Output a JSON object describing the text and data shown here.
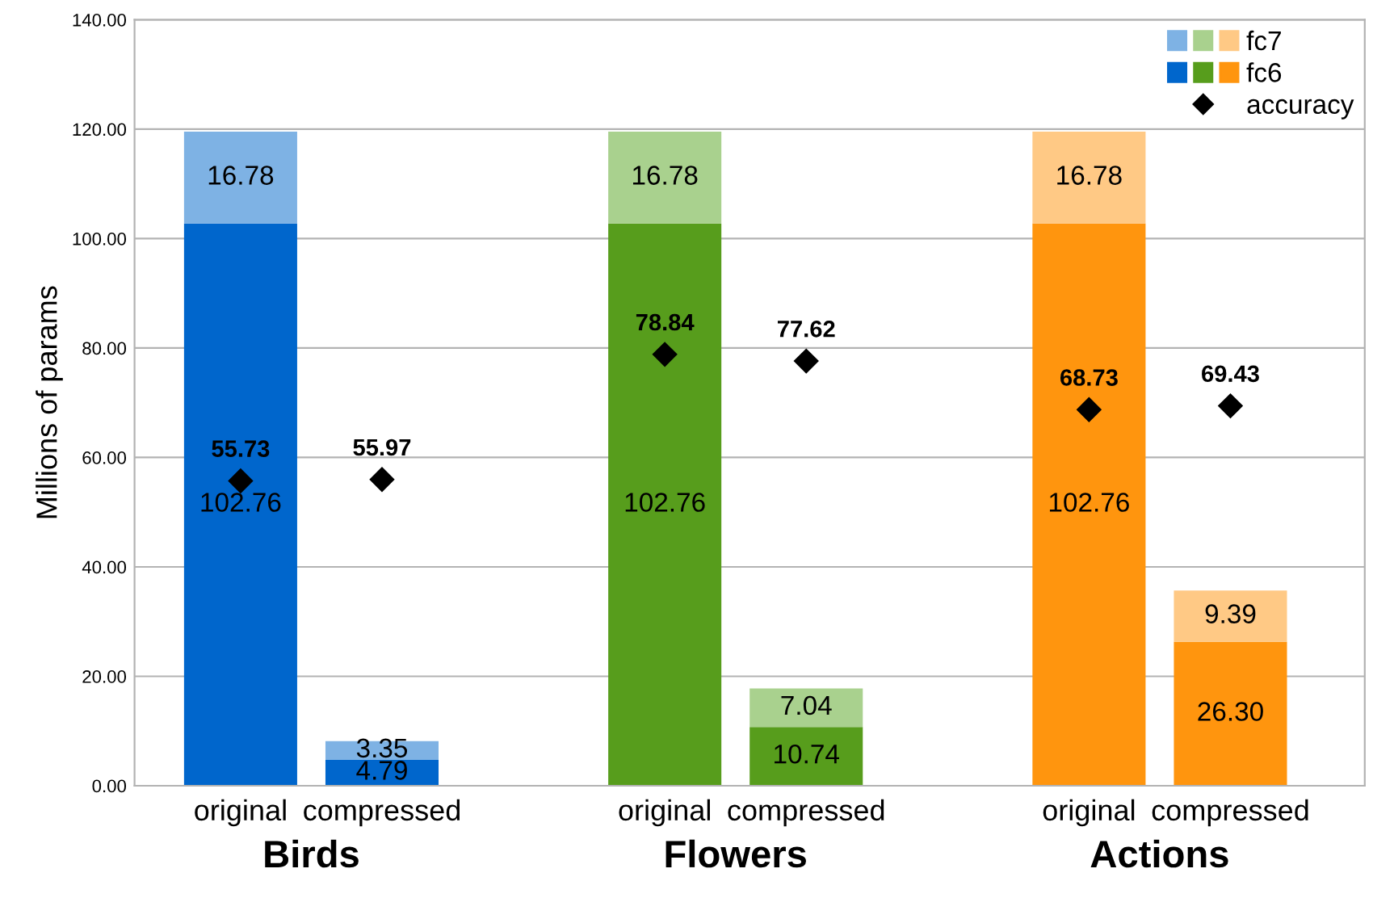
{
  "chart_data": {
    "type": "bar",
    "stacked": true,
    "ylabel": "Millions of params",
    "categories": [
      "original",
      "compressed",
      null,
      "original",
      "compressed",
      null,
      "original",
      "compressed"
    ],
    "annotations": [
      "Birds",
      "Flowers",
      "Actions"
    ],
    "series": [
      {
        "name": "fc6",
        "colors": [
          "#0066cc",
          "#0066cc",
          null,
          "#579d1c",
          "#579d1c",
          null,
          "#ff950e",
          "#ff950e"
        ],
        "values": [
          102.76,
          4.79,
          null,
          102.76,
          10.74,
          null,
          102.76,
          26.3
        ],
        "value_labels": [
          "102.76",
          "4.79",
          null,
          "102.76",
          "10.74",
          null,
          "102.76",
          "26.30"
        ]
      },
      {
        "name": "fc7",
        "colors": [
          "#7eb2e4",
          "#7eb2e4",
          null,
          "#a9d18e",
          "#a9d18e",
          null,
          "#ffc985",
          "#ffc985"
        ],
        "values": [
          16.78,
          3.35,
          null,
          16.78,
          7.04,
          null,
          16.78,
          9.39
        ],
        "value_labels": [
          "16.78",
          "3.35",
          null,
          "16.78",
          "7.04",
          null,
          "16.78",
          "9.39"
        ]
      },
      {
        "name": "accuracy",
        "type": "scatter",
        "marker": "diamond",
        "color": "#000000",
        "values": [
          55.73,
          55.97,
          null,
          78.84,
          77.62,
          null,
          68.73,
          69.43
        ],
        "value_labels": [
          "55.73",
          "55.97",
          null,
          "78.84",
          "77.62",
          null,
          "68.73",
          "69.43"
        ]
      }
    ],
    "ylim": [
      0,
      140
    ],
    "yticks": [
      {
        "value": 0,
        "label": "0.00"
      },
      {
        "value": 20,
        "label": "20.00"
      },
      {
        "value": 40,
        "label": "40.00"
      },
      {
        "value": 60,
        "label": "60.00"
      },
      {
        "value": 80,
        "label": "80.00"
      },
      {
        "value": 100,
        "label": "100.00"
      },
      {
        "value": 120,
        "label": "120.00"
      },
      {
        "value": 140,
        "label": "140.00"
      }
    ],
    "grid": "y",
    "legend": "top right"
  }
}
